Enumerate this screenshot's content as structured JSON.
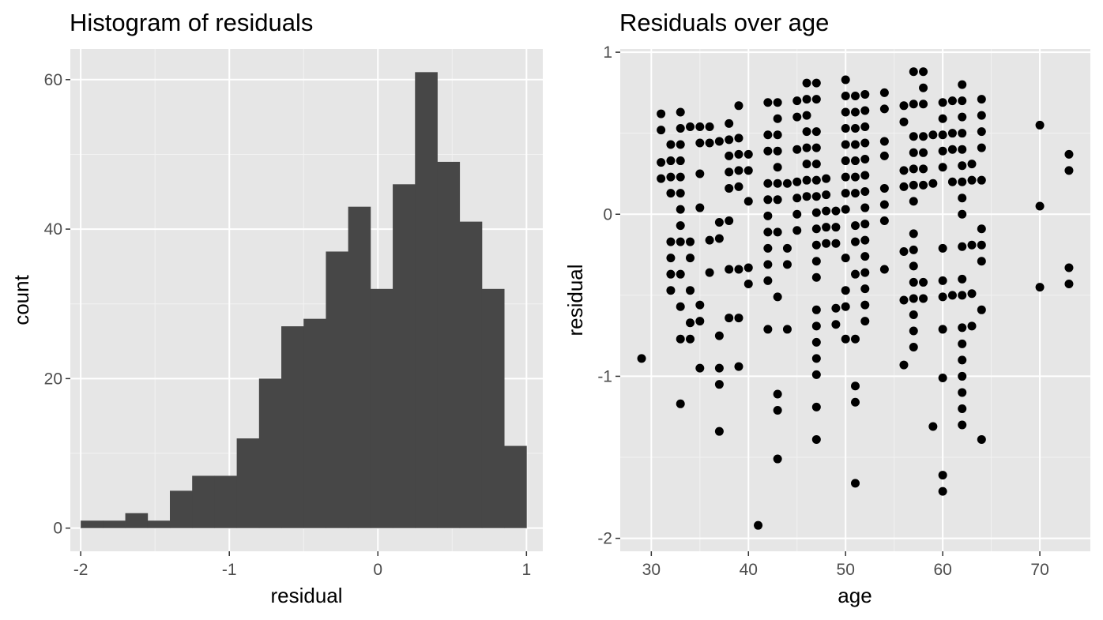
{
  "chart_data": [
    {
      "type": "bar",
      "title": "Histogram of residuals",
      "xlabel": "residual",
      "ylabel": "count",
      "xlim": [
        -2.07,
        1.11
      ],
      "ylim": [
        -3.1,
        64.1
      ],
      "xticks": [
        -2,
        -1,
        0,
        1
      ],
      "yticks": [
        0,
        20,
        40,
        60
      ],
      "grid": true,
      "bar_color": "#474747",
      "panel_color": "#e6e6e6",
      "bin_width": 0.15,
      "bins_start": [
        -2.0,
        -1.85,
        -1.7,
        -1.55,
        -1.4,
        -1.25,
        -1.1,
        -0.95,
        -0.8,
        -0.65,
        -0.5,
        -0.35,
        -0.2,
        -0.05,
        0.1,
        0.25,
        0.4,
        0.55,
        0.7,
        0.85
      ],
      "values": [
        1,
        1,
        2,
        1,
        5,
        7,
        7,
        12,
        20,
        27,
        28,
        37,
        43,
        32,
        46,
        61,
        49,
        41,
        32,
        11
      ]
    },
    {
      "type": "scatter",
      "title": "Residuals over age",
      "xlabel": "age",
      "ylabel": "residual",
      "xlim": [
        26.8,
        75.2
      ],
      "ylim": [
        -2.08,
        1.02
      ],
      "xticks": [
        30,
        40,
        50,
        60,
        70
      ],
      "yticks": [
        -2,
        -1,
        0,
        1
      ],
      "grid": true,
      "point_color": "#000000",
      "panel_color": "#e6e6e6",
      "points": [
        [
          29,
          -0.89
        ],
        [
          31,
          0.62
        ],
        [
          31,
          0.52
        ],
        [
          31,
          0.32
        ],
        [
          31,
          0.22
        ],
        [
          32,
          0.43
        ],
        [
          32,
          0.33
        ],
        [
          32,
          0.23
        ],
        [
          32,
          0.13
        ],
        [
          32,
          -0.17
        ],
        [
          32,
          -0.27
        ],
        [
          32,
          -0.37
        ],
        [
          32,
          -0.47
        ],
        [
          33,
          0.63
        ],
        [
          33,
          0.53
        ],
        [
          33,
          0.43
        ],
        [
          33,
          0.33
        ],
        [
          33,
          0.23
        ],
        [
          33,
          0.13
        ],
        [
          33,
          0.03
        ],
        [
          33,
          -0.07
        ],
        [
          33,
          -0.17
        ],
        [
          33,
          -0.37
        ],
        [
          33,
          -0.57
        ],
        [
          33,
          -0.77
        ],
        [
          33,
          -1.17
        ],
        [
          34,
          0.54
        ],
        [
          34,
          -0.17
        ],
        [
          34,
          -0.27
        ],
        [
          34,
          -0.47
        ],
        [
          34,
          -0.67
        ],
        [
          34,
          -0.77
        ],
        [
          35,
          0.54
        ],
        [
          35,
          0.44
        ],
        [
          35,
          0.25
        ],
        [
          35,
          0.04
        ],
        [
          35,
          -0.56
        ],
        [
          35,
          -0.66
        ],
        [
          35,
          -0.95
        ],
        [
          36,
          0.54
        ],
        [
          36,
          0.44
        ],
        [
          36,
          -0.16
        ],
        [
          36,
          -0.36
        ],
        [
          37,
          0.45
        ],
        [
          37,
          -0.05
        ],
        [
          37,
          -0.15
        ],
        [
          37,
          -0.75
        ],
        [
          37,
          -0.95
        ],
        [
          37,
          -1.05
        ],
        [
          37,
          -1.34
        ],
        [
          38,
          0.56
        ],
        [
          38,
          0.46
        ],
        [
          38,
          0.36
        ],
        [
          38,
          0.26
        ],
        [
          38,
          0.16
        ],
        [
          38,
          -0.04
        ],
        [
          38,
          -0.34
        ],
        [
          38,
          -0.64
        ],
        [
          39,
          0.67
        ],
        [
          39,
          0.47
        ],
        [
          39,
          0.37
        ],
        [
          39,
          0.27
        ],
        [
          39,
          0.17
        ],
        [
          39,
          -0.34
        ],
        [
          39,
          -0.64
        ],
        [
          39,
          -0.94
        ],
        [
          40,
          0.37
        ],
        [
          40,
          0.27
        ],
        [
          40,
          0.08
        ],
        [
          40,
          -0.33
        ],
        [
          40,
          -0.43
        ],
        [
          41,
          -1.92
        ],
        [
          42,
          0.69
        ],
        [
          42,
          0.49
        ],
        [
          42,
          0.39
        ],
        [
          42,
          0.19
        ],
        [
          42,
          0.09
        ],
        [
          42,
          -0.01
        ],
        [
          42,
          -0.11
        ],
        [
          42,
          -0.21
        ],
        [
          42,
          -0.31
        ],
        [
          42,
          -0.41
        ],
        [
          42,
          -0.71
        ],
        [
          43,
          0.69
        ],
        [
          43,
          0.59
        ],
        [
          43,
          0.49
        ],
        [
          43,
          0.39
        ],
        [
          43,
          0.29
        ],
        [
          43,
          0.19
        ],
        [
          43,
          0.09
        ],
        [
          43,
          -0.11
        ],
        [
          43,
          -0.51
        ],
        [
          43,
          -1.11
        ],
        [
          43,
          -1.21
        ],
        [
          43,
          -1.51
        ],
        [
          44,
          0.19
        ],
        [
          44,
          -0.21
        ],
        [
          44,
          -0.31
        ],
        [
          44,
          -0.71
        ],
        [
          45,
          0.7
        ],
        [
          45,
          0.6
        ],
        [
          45,
          0.4
        ],
        [
          45,
          0.2
        ],
        [
          45,
          0.1
        ],
        [
          45,
          0.0
        ],
        [
          45,
          -0.1
        ],
        [
          46,
          0.81
        ],
        [
          46,
          0.71
        ],
        [
          46,
          0.61
        ],
        [
          46,
          0.51
        ],
        [
          46,
          0.41
        ],
        [
          46,
          0.31
        ],
        [
          46,
          0.21
        ],
        [
          46,
          0.11
        ],
        [
          47,
          0.81
        ],
        [
          47,
          0.71
        ],
        [
          47,
          0.51
        ],
        [
          47,
          0.41
        ],
        [
          47,
          0.31
        ],
        [
          47,
          0.21
        ],
        [
          47,
          0.11
        ],
        [
          47,
          0.01
        ],
        [
          47,
          -0.09
        ],
        [
          47,
          -0.19
        ],
        [
          47,
          -0.29
        ],
        [
          47,
          -0.39
        ],
        [
          47,
          -0.59
        ],
        [
          47,
          -0.69
        ],
        [
          47,
          -0.79
        ],
        [
          47,
          -0.89
        ],
        [
          47,
          -0.99
        ],
        [
          47,
          -1.19
        ],
        [
          47,
          -1.39
        ],
        [
          48,
          0.22
        ],
        [
          48,
          0.12
        ],
        [
          48,
          0.02
        ],
        [
          48,
          -0.08
        ],
        [
          48,
          -0.18
        ],
        [
          49,
          0.02
        ],
        [
          49,
          -0.08
        ],
        [
          49,
          -0.18
        ],
        [
          49,
          -0.58
        ],
        [
          49,
          -0.68
        ],
        [
          50,
          0.83
        ],
        [
          50,
          0.73
        ],
        [
          50,
          0.63
        ],
        [
          50,
          0.53
        ],
        [
          50,
          0.43
        ],
        [
          50,
          0.33
        ],
        [
          50,
          0.23
        ],
        [
          50,
          0.13
        ],
        [
          50,
          0.03
        ],
        [
          50,
          -0.27
        ],
        [
          50,
          -0.47
        ],
        [
          50,
          -0.57
        ],
        [
          50,
          -0.77
        ],
        [
          51,
          0.73
        ],
        [
          51,
          0.63
        ],
        [
          51,
          0.53
        ],
        [
          51,
          0.43
        ],
        [
          51,
          0.33
        ],
        [
          51,
          0.23
        ],
        [
          51,
          0.13
        ],
        [
          51,
          -0.07
        ],
        [
          51,
          -0.17
        ],
        [
          51,
          -0.37
        ],
        [
          51,
          -0.77
        ],
        [
          51,
          -1.06
        ],
        [
          51,
          -1.16
        ],
        [
          51,
          -1.66
        ],
        [
          52,
          0.74
        ],
        [
          52,
          0.64
        ],
        [
          52,
          0.54
        ],
        [
          52,
          0.44
        ],
        [
          52,
          0.34
        ],
        [
          52,
          0.24
        ],
        [
          52,
          0.14
        ],
        [
          52,
          0.04
        ],
        [
          52,
          -0.06
        ],
        [
          52,
          -0.16
        ],
        [
          52,
          -0.26
        ],
        [
          52,
          -0.36
        ],
        [
          52,
          -0.46
        ],
        [
          52,
          -0.56
        ],
        [
          52,
          -0.66
        ],
        [
          54,
          0.75
        ],
        [
          54,
          0.65
        ],
        [
          54,
          0.45
        ],
        [
          54,
          0.36
        ],
        [
          54,
          0.16
        ],
        [
          54,
          0.06
        ],
        [
          54,
          -0.04
        ],
        [
          54,
          -0.34
        ],
        [
          56,
          0.67
        ],
        [
          56,
          0.57
        ],
        [
          56,
          0.27
        ],
        [
          56,
          0.17
        ],
        [
          56,
          -0.23
        ],
        [
          56,
          -0.53
        ],
        [
          56,
          -0.93
        ],
        [
          57,
          0.88
        ],
        [
          57,
          0.68
        ],
        [
          57,
          0.48
        ],
        [
          57,
          0.38
        ],
        [
          57,
          0.28
        ],
        [
          57,
          0.18
        ],
        [
          57,
          0.08
        ],
        [
          57,
          -0.12
        ],
        [
          57,
          -0.22
        ],
        [
          57,
          -0.32
        ],
        [
          57,
          -0.42
        ],
        [
          57,
          -0.52
        ],
        [
          57,
          -0.62
        ],
        [
          57,
          -0.72
        ],
        [
          57,
          -0.82
        ],
        [
          58,
          0.88
        ],
        [
          58,
          0.78
        ],
        [
          58,
          0.68
        ],
        [
          58,
          0.48
        ],
        [
          58,
          0.38
        ],
        [
          58,
          0.28
        ],
        [
          58,
          0.18
        ],
        [
          58,
          -0.42
        ],
        [
          58,
          -0.52
        ],
        [
          59,
          0.49
        ],
        [
          59,
          0.19
        ],
        [
          59,
          -1.31
        ],
        [
          60,
          0.69
        ],
        [
          60,
          0.59
        ],
        [
          60,
          0.49
        ],
        [
          60,
          0.39
        ],
        [
          60,
          0.29
        ],
        [
          60,
          -0.21
        ],
        [
          60,
          -0.41
        ],
        [
          60,
          -0.51
        ],
        [
          60,
          -0.71
        ],
        [
          60,
          -1.01
        ],
        [
          60,
          -1.61
        ],
        [
          60,
          -1.71
        ],
        [
          61,
          0.7
        ],
        [
          61,
          0.5
        ],
        [
          61,
          0.4
        ],
        [
          61,
          0.2
        ],
        [
          61,
          -0.5
        ],
        [
          62,
          0.8
        ],
        [
          62,
          0.7
        ],
        [
          62,
          0.6
        ],
        [
          62,
          0.5
        ],
        [
          62,
          0.4
        ],
        [
          62,
          0.3
        ],
        [
          62,
          0.2
        ],
        [
          62,
          0.1
        ],
        [
          62,
          0.0
        ],
        [
          62,
          -0.2
        ],
        [
          62,
          -0.4
        ],
        [
          62,
          -0.5
        ],
        [
          62,
          -0.7
        ],
        [
          62,
          -0.8
        ],
        [
          62,
          -0.9
        ],
        [
          62,
          -1.0
        ],
        [
          62,
          -1.1
        ],
        [
          62,
          -1.2
        ],
        [
          62,
          -1.3
        ],
        [
          63,
          0.31
        ],
        [
          63,
          0.21
        ],
        [
          63,
          -0.19
        ],
        [
          63,
          -0.49
        ],
        [
          63,
          -0.69
        ],
        [
          64,
          0.71
        ],
        [
          64,
          0.61
        ],
        [
          64,
          0.51
        ],
        [
          64,
          0.41
        ],
        [
          64,
          0.21
        ],
        [
          64,
          -0.09
        ],
        [
          64,
          -0.19
        ],
        [
          64,
          -0.29
        ],
        [
          64,
          -0.59
        ],
        [
          64,
          -1.39
        ],
        [
          70,
          0.55
        ],
        [
          70,
          0.05
        ],
        [
          70,
          -0.45
        ],
        [
          73,
          0.37
        ],
        [
          73,
          0.27
        ],
        [
          73,
          -0.33
        ],
        [
          73,
          -0.43
        ]
      ]
    }
  ]
}
